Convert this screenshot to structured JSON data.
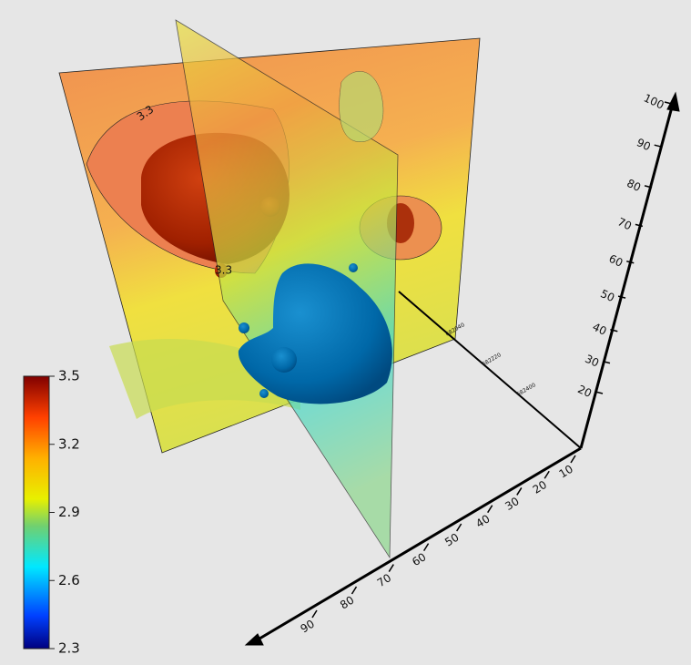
{
  "colorbar": {
    "ticks": [
      2.3,
      2.6,
      2.9,
      3.2,
      3.5
    ]
  },
  "axes": {
    "depth_ticks": [
      10,
      20,
      30,
      40,
      50,
      60,
      70,
      80,
      90
    ],
    "vertical_ticks": [
      20,
      30,
      40,
      50,
      60,
      70,
      80,
      90,
      100
    ],
    "easting_ticks": [
      "682040",
      "682220",
      "682400"
    ]
  },
  "contour_labels": [
    "3.3",
    "3.3"
  ]
}
